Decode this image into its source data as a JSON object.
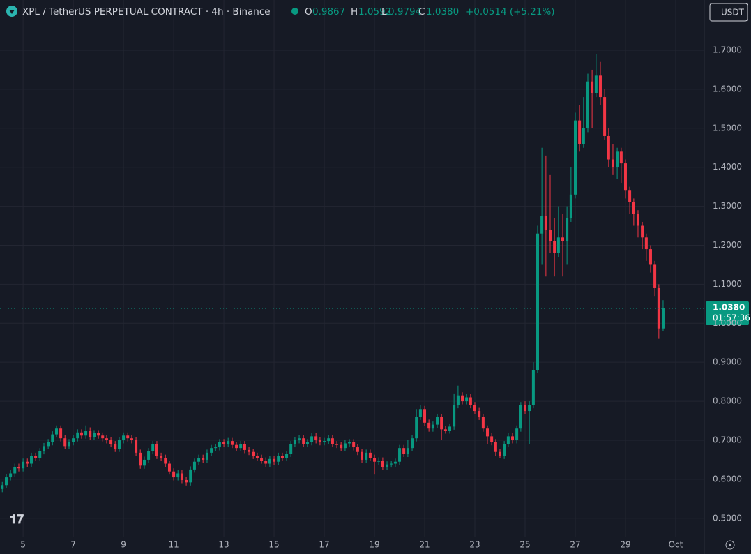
{
  "chart_data": {
    "type": "candlestick",
    "title": "XPL / TetherUS PERPETUAL CONTRACT · 4h · Binance",
    "header": {
      "o_label": "O",
      "o_value": "0.9867",
      "h_label": "H",
      "h_value": "1.0592",
      "l_label": "L",
      "l_value": "0.9794",
      "c_label": "C",
      "c_value": "1.0380",
      "change": "+0.0514 (+5.21%)"
    },
    "currency": "USDT",
    "last_price_label": "1.0380",
    "countdown": "01:57:36",
    "up_color": "#089981",
    "down_color": "#f23645",
    "grid": true,
    "xlim": [
      4.08,
      32.14
    ],
    "ylim": [
      0.4513,
      1.8288
    ],
    "xticks": [
      5,
      7,
      9,
      11,
      13,
      15,
      17,
      19,
      21,
      23,
      25,
      27,
      29,
      {
        "value": 31,
        "label": "Oct"
      }
    ],
    "yticks": [
      {
        "value": 0.5,
        "label": "0.5000"
      },
      {
        "value": 0.6,
        "label": "0.6000"
      },
      {
        "value": 0.7,
        "label": "0.7000"
      },
      {
        "value": 0.8,
        "label": "0.8000"
      },
      {
        "value": 0.9,
        "label": "0.9000"
      },
      {
        "value": 1.0,
        "label": "1.0000"
      },
      {
        "value": 1.1,
        "label": "1.1000"
      },
      {
        "value": 1.2,
        "label": "1.2000"
      },
      {
        "value": 1.3,
        "label": "1.3000"
      },
      {
        "value": 1.4,
        "label": "1.4000"
      },
      {
        "value": 1.5,
        "label": "1.5000"
      },
      {
        "value": 1.6,
        "label": "1.6000"
      },
      {
        "value": 1.7,
        "label": "1.7000"
      }
    ],
    "x": [
      4.17,
      4.33,
      4.5,
      4.67,
      4.83,
      5,
      5.17,
      5.33,
      5.5,
      5.67,
      5.83,
      6,
      6.17,
      6.33,
      6.5,
      6.67,
      6.83,
      7,
      7.17,
      7.33,
      7.5,
      7.67,
      7.83,
      8,
      8.17,
      8.33,
      8.5,
      8.67,
      8.83,
      9,
      9.17,
      9.33,
      9.5,
      9.67,
      9.83,
      10,
      10.17,
      10.33,
      10.5,
      10.67,
      10.83,
      11,
      11.17,
      11.33,
      11.5,
      11.67,
      11.83,
      12,
      12.17,
      12.33,
      12.5,
      12.67,
      12.83,
      13,
      13.17,
      13.33,
      13.5,
      13.67,
      13.83,
      14,
      14.17,
      14.33,
      14.5,
      14.67,
      14.83,
      15,
      15.17,
      15.33,
      15.5,
      15.67,
      15.83,
      16,
      16.17,
      16.33,
      16.5,
      16.67,
      16.83,
      17,
      17.17,
      17.33,
      17.5,
      17.67,
      17.83,
      18,
      18.17,
      18.33,
      18.5,
      18.67,
      18.83,
      19,
      19.17,
      19.33,
      19.5,
      19.67,
      19.83,
      20,
      20.17,
      20.33,
      20.5,
      20.67,
      20.83,
      21,
      21.17,
      21.33,
      21.5,
      21.67,
      21.83,
      22,
      22.17,
      22.33,
      22.5,
      22.67,
      22.83,
      23,
      23.17,
      23.33,
      23.5,
      23.67,
      23.83,
      24,
      24.17,
      24.33,
      24.5,
      24.67,
      24.83,
      25,
      25.17,
      25.33,
      25.5,
      25.67,
      25.83,
      26,
      26.17,
      26.33,
      26.5,
      26.67,
      26.83,
      27,
      27.17,
      27.33,
      27.5,
      27.67,
      27.83,
      28,
      28.17,
      28.33,
      28.5,
      28.67,
      28.83,
      29,
      29.17,
      29.33,
      29.5,
      29.67,
      29.83,
      30,
      30.17,
      30.33,
      30.5
    ],
    "open": [
      0.575,
      0.585,
      0.605,
      0.615,
      0.632,
      0.628,
      0.645,
      0.64,
      0.66,
      0.655,
      0.672,
      0.685,
      0.695,
      0.715,
      0.73,
      0.705,
      0.685,
      0.695,
      0.705,
      0.72,
      0.712,
      0.725,
      0.708,
      0.718,
      0.712,
      0.705,
      0.7,
      0.69,
      0.678,
      0.7,
      0.712,
      0.705,
      0.7,
      0.668,
      0.635,
      0.65,
      0.672,
      0.69,
      0.66,
      0.655,
      0.64,
      0.62,
      0.605,
      0.615,
      0.598,
      0.592,
      0.625,
      0.645,
      0.655,
      0.65,
      0.668,
      0.68,
      0.682,
      0.695,
      0.69,
      0.698,
      0.688,
      0.68,
      0.69,
      0.675,
      0.67,
      0.66,
      0.655,
      0.648,
      0.64,
      0.652,
      0.645,
      0.66,
      0.655,
      0.665,
      0.69,
      0.7,
      0.705,
      0.69,
      0.695,
      0.71,
      0.7,
      0.695,
      0.698,
      0.705,
      0.69,
      0.688,
      0.68,
      0.692,
      0.695,
      0.682,
      0.67,
      0.65,
      0.668,
      0.655,
      0.645,
      0.648,
      0.632,
      0.638,
      0.64,
      0.645,
      0.68,
      0.665,
      0.68,
      0.705,
      0.76,
      0.78,
      0.745,
      0.73,
      0.74,
      0.76,
      0.728,
      0.725,
      0.735,
      0.79,
      0.815,
      0.8,
      0.81,
      0.79,
      0.775,
      0.76,
      0.73,
      0.71,
      0.695,
      0.67,
      0.66,
      0.69,
      0.71,
      0.7,
      0.73,
      0.79,
      0.775,
      0.79,
      0.88,
      1.23,
      1.275,
      1.24,
      1.21,
      1.18,
      1.22,
      1.21,
      1.27,
      1.33,
      1.52,
      1.46,
      1.5,
      1.62,
      1.59,
      1.635,
      1.58,
      1.48,
      1.42,
      1.4,
      1.44,
      1.41,
      1.34,
      1.31,
      1.28,
      1.25,
      1.22,
      1.19,
      1.15,
      1.09,
      0.9867
    ],
    "high": [
      0.593,
      0.613,
      0.623,
      0.64,
      0.64,
      0.653,
      0.653,
      0.668,
      0.668,
      0.68,
      0.693,
      0.703,
      0.723,
      0.738,
      0.738,
      0.713,
      0.703,
      0.713,
      0.728,
      0.728,
      0.738,
      0.733,
      0.726,
      0.726,
      0.72,
      0.713,
      0.708,
      0.698,
      0.708,
      0.72,
      0.72,
      0.713,
      0.708,
      0.676,
      0.658,
      0.68,
      0.698,
      0.698,
      0.668,
      0.663,
      0.648,
      0.628,
      0.623,
      0.623,
      0.606,
      0.633,
      0.653,
      0.663,
      0.663,
      0.676,
      0.688,
      0.69,
      0.703,
      0.703,
      0.706,
      0.706,
      0.696,
      0.698,
      0.698,
      0.683,
      0.678,
      0.668,
      0.663,
      0.656,
      0.66,
      0.66,
      0.668,
      0.668,
      0.673,
      0.698,
      0.708,
      0.713,
      0.713,
      0.703,
      0.718,
      0.718,
      0.708,
      0.706,
      0.713,
      0.713,
      0.698,
      0.696,
      0.7,
      0.703,
      0.703,
      0.69,
      0.678,
      0.676,
      0.676,
      0.663,
      0.656,
      0.656,
      0.646,
      0.648,
      0.653,
      0.688,
      0.688,
      0.7,
      0.713,
      0.78,
      0.79,
      0.788,
      0.753,
      0.748,
      0.768,
      0.768,
      0.736,
      0.743,
      0.82,
      0.84,
      0.823,
      0.818,
      0.818,
      0.798,
      0.783,
      0.768,
      0.738,
      0.718,
      0.703,
      0.678,
      0.698,
      0.718,
      0.718,
      0.738,
      0.798,
      0.8,
      0.8,
      0.9,
      1.25,
      1.45,
      1.43,
      1.38,
      1.27,
      1.3,
      1.28,
      1.3,
      1.4,
      1.54,
      1.56,
      1.58,
      1.64,
      1.65,
      1.69,
      1.67,
      1.6,
      1.5,
      1.46,
      1.45,
      1.45,
      1.42,
      1.35,
      1.32,
      1.29,
      1.26,
      1.23,
      1.2,
      1.16,
      1.1,
      1.0592
    ],
    "low": [
      0.567,
      0.577,
      0.597,
      0.607,
      0.62,
      0.62,
      0.632,
      0.632,
      0.647,
      0.647,
      0.664,
      0.677,
      0.687,
      0.707,
      0.697,
      0.677,
      0.677,
      0.687,
      0.697,
      0.704,
      0.704,
      0.7,
      0.7,
      0.704,
      0.697,
      0.692,
      0.682,
      0.67,
      0.67,
      0.692,
      0.697,
      0.692,
      0.66,
      0.627,
      0.627,
      0.642,
      0.664,
      0.652,
      0.647,
      0.632,
      0.612,
      0.597,
      0.597,
      0.59,
      0.584,
      0.584,
      0.617,
      0.637,
      0.642,
      0.642,
      0.66,
      0.672,
      0.674,
      0.682,
      0.682,
      0.68,
      0.672,
      0.672,
      0.667,
      0.662,
      0.652,
      0.647,
      0.64,
      0.632,
      0.632,
      0.637,
      0.637,
      0.647,
      0.647,
      0.657,
      0.682,
      0.692,
      0.682,
      0.682,
      0.687,
      0.692,
      0.687,
      0.687,
      0.69,
      0.682,
      0.68,
      0.672,
      0.672,
      0.684,
      0.674,
      0.662,
      0.642,
      0.642,
      0.647,
      0.612,
      0.637,
      0.624,
      0.624,
      0.63,
      0.632,
      0.637,
      0.657,
      0.657,
      0.672,
      0.697,
      0.752,
      0.737,
      0.722,
      0.722,
      0.732,
      0.7,
      0.717,
      0.717,
      0.727,
      0.782,
      0.792,
      0.792,
      0.782,
      0.767,
      0.752,
      0.722,
      0.69,
      0.687,
      0.66,
      0.655,
      0.652,
      0.682,
      0.692,
      0.692,
      0.722,
      0.767,
      0.69,
      0.782,
      0.872,
      1.15,
      1.12,
      1.18,
      1.12,
      1.17,
      1.12,
      1.15,
      1.26,
      1.32,
      1.44,
      1.45,
      1.49,
      1.5,
      1.58,
      1.56,
      1.47,
      1.4,
      1.38,
      1.37,
      1.36,
      1.32,
      1.28,
      1.25,
      1.22,
      1.19,
      1.16,
      1.13,
      1.07,
      0.96,
      0.9794
    ],
    "close": [
      0.585,
      0.605,
      0.615,
      0.632,
      0.628,
      0.645,
      0.64,
      0.66,
      0.655,
      0.672,
      0.685,
      0.695,
      0.715,
      0.73,
      0.705,
      0.685,
      0.695,
      0.705,
      0.72,
      0.712,
      0.725,
      0.708,
      0.718,
      0.712,
      0.705,
      0.7,
      0.69,
      0.678,
      0.7,
      0.712,
      0.705,
      0.7,
      0.668,
      0.635,
      0.65,
      0.672,
      0.69,
      0.66,
      0.655,
      0.64,
      0.62,
      0.605,
      0.615,
      0.598,
      0.592,
      0.625,
      0.645,
      0.655,
      0.65,
      0.668,
      0.68,
      0.682,
      0.695,
      0.69,
      0.698,
      0.688,
      0.68,
      0.69,
      0.675,
      0.67,
      0.66,
      0.655,
      0.648,
      0.64,
      0.652,
      0.645,
      0.66,
      0.655,
      0.665,
      0.69,
      0.7,
      0.705,
      0.69,
      0.695,
      0.71,
      0.7,
      0.695,
      0.698,
      0.705,
      0.69,
      0.688,
      0.68,
      0.692,
      0.695,
      0.682,
      0.67,
      0.65,
      0.668,
      0.655,
      0.645,
      0.648,
      0.632,
      0.638,
      0.64,
      0.645,
      0.68,
      0.665,
      0.68,
      0.705,
      0.76,
      0.78,
      0.745,
      0.73,
      0.74,
      0.76,
      0.728,
      0.725,
      0.735,
      0.79,
      0.815,
      0.8,
      0.81,
      0.79,
      0.775,
      0.76,
      0.73,
      0.71,
      0.695,
      0.67,
      0.66,
      0.69,
      0.71,
      0.7,
      0.73,
      0.79,
      0.775,
      0.79,
      0.88,
      1.23,
      1.275,
      1.24,
      1.21,
      1.18,
      1.22,
      1.21,
      1.27,
      1.33,
      1.52,
      1.46,
      1.5,
      1.62,
      1.59,
      1.635,
      1.58,
      1.48,
      1.42,
      1.4,
      1.44,
      1.41,
      1.34,
      1.31,
      1.28,
      1.25,
      1.22,
      1.19,
      1.15,
      1.09,
      0.9867,
      1.038
    ]
  }
}
